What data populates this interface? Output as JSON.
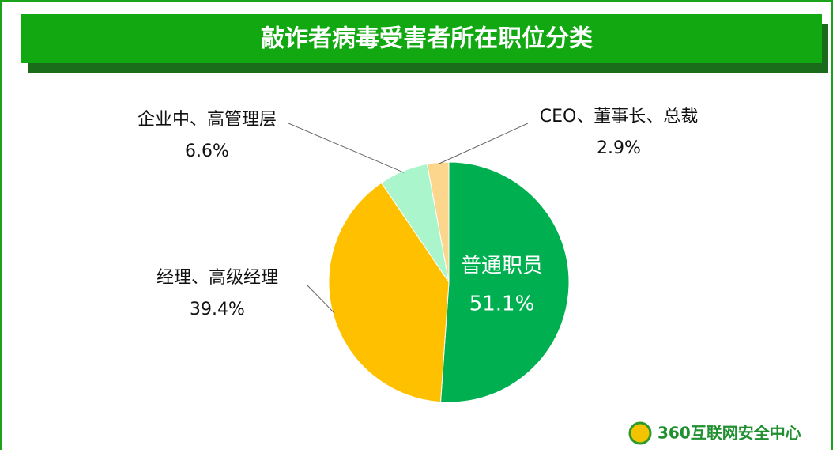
{
  "chart_data": {
    "type": "pie",
    "title": "敲诈者病毒受害者所在职位分类",
    "categories": [
      "普通职员",
      "经理、高级经理",
      "企业中、高管理层",
      "CEO、董事长、总裁"
    ],
    "values": [
      51.1,
      39.4,
      6.6,
      2.9
    ],
    "value_labels": [
      "51.1%",
      "39.4%",
      "6.6%",
      "2.9%"
    ],
    "colors": [
      "#00b050",
      "#ffc000",
      "#aaf5cc",
      "#fcd68c"
    ],
    "source": "360互联网安全中心"
  }
}
